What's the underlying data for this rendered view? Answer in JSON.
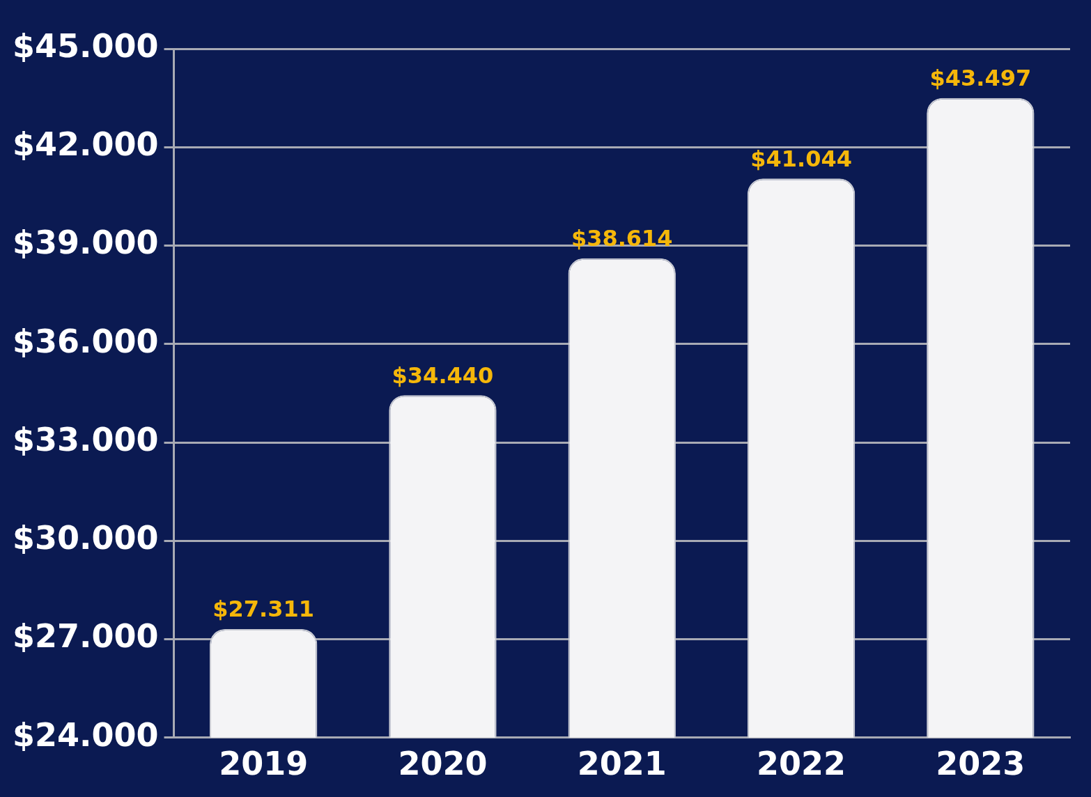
{
  "chart_data": {
    "type": "bar",
    "categories": [
      "2019",
      "2020",
      "2021",
      "2022",
      "2023"
    ],
    "values": [
      27311,
      34440,
      38614,
      41044,
      43497
    ],
    "value_labels": [
      "$27.311",
      "$34.440",
      "$38.614",
      "$41.044",
      "$43.497"
    ],
    "data_labels": true,
    "color": "#f4f4f6",
    "ylim": [
      24000,
      45000
    ],
    "yticks": [
      {
        "value": 24000,
        "label": "$24.000"
      },
      {
        "value": 27000,
        "label": "$27.000"
      },
      {
        "value": 30000,
        "label": "$30.000"
      },
      {
        "value": 33000,
        "label": "$33.000"
      },
      {
        "value": 36000,
        "label": "$36.000"
      },
      {
        "value": 39000,
        "label": "$39.000"
      },
      {
        "value": 42000,
        "label": "$42.000"
      },
      {
        "value": 45000,
        "label": "$45.000"
      }
    ],
    "grid": true
  }
}
